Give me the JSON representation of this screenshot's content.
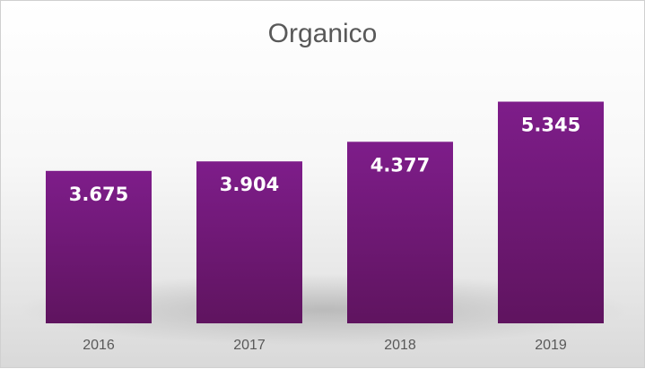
{
  "chart_data": {
    "type": "bar",
    "title": "Organico",
    "categories": [
      "2016",
      "2017",
      "2018",
      "2019"
    ],
    "values": [
      3.675,
      3.904,
      4.377,
      5.345
    ],
    "value_labels": [
      "3.675",
      "3.904",
      "4.377",
      "5.345"
    ],
    "xlabel": "",
    "ylabel": "",
    "grid": false,
    "legend": "none",
    "colors": {
      "bar_top": "#7e1d8a",
      "bar_bottom": "#5f145f",
      "label": "#ffffff",
      "tick": "#595959"
    }
  }
}
